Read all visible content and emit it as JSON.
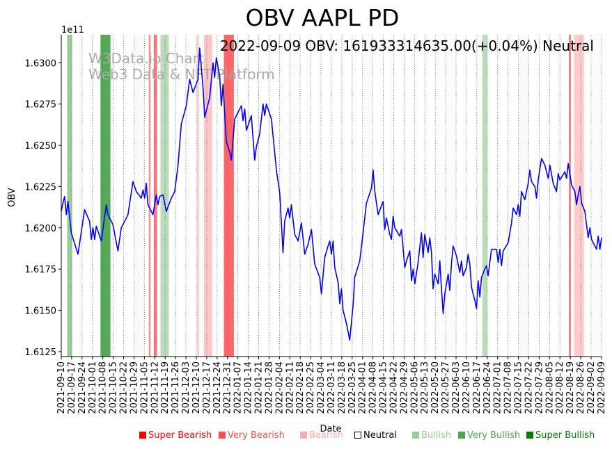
{
  "chart_data": {
    "type": "line",
    "title": "OBV AAPL PD",
    "annotation": "2022-09-09 OBV: 161933314635.00(+0.04%) Neutral",
    "watermark": [
      "W3Data.io Chart",
      "Web3 Data & NFT Platform"
    ],
    "xlabel": "Date",
    "ylabel": "OBV",
    "y_multiplier_label": "1e11",
    "ylim": [
      1.6122,
      1.6317
    ],
    "grid": "vertical dotted lines at each date tick",
    "yticks": [
      1.6125,
      1.615,
      1.6175,
      1.62,
      1.6225,
      1.625,
      1.6275,
      1.63
    ],
    "ytick_labels": [
      "1.6125",
      "1.6150",
      "1.6175",
      "1.6200",
      "1.6225",
      "1.6250",
      "1.6275",
      "1.6300"
    ],
    "xtick_labels": [
      "2021-09-10",
      "2021-09-17",
      "2021-09-24",
      "2021-10-01",
      "2021-10-08",
      "2021-10-15",
      "2021-10-22",
      "2021-10-29",
      "2021-11-05",
      "2021-11-12",
      "2021-11-19",
      "2021-11-26",
      "2021-12-03",
      "2021-12-10",
      "2021-12-17",
      "2021-12-24",
      "2021-12-31",
      "2022-01-07",
      "2022-01-14",
      "2022-01-21",
      "2022-01-28",
      "2022-02-04",
      "2022-02-11",
      "2022-02-18",
      "2022-02-25",
      "2022-03-04",
      "2022-03-11",
      "2022-03-18",
      "2022-03-25",
      "2022-04-01",
      "2022-04-08",
      "2022-04-15",
      "2022-04-22",
      "2022-04-29",
      "2022-05-06",
      "2022-05-13",
      "2022-05-20",
      "2022-05-27",
      "2022-06-03",
      "2022-06-10",
      "2022-06-17",
      "2022-06-24",
      "2022-07-01",
      "2022-07-08",
      "2022-07-15",
      "2022-07-22",
      "2022-07-29",
      "2022-08-05",
      "2022-08-12",
      "2022-08-19",
      "2022-08-26",
      "2022-09-02",
      "2022-09-09"
    ],
    "series": [
      {
        "name": "OBV",
        "color": "#0000ff",
        "points": [
          [
            0,
            1.621
          ],
          [
            1,
            1.6215
          ],
          [
            2,
            1.6219
          ],
          [
            3,
            1.6208
          ],
          [
            4,
            1.6216
          ],
          [
            6,
            1.6197
          ],
          [
            10,
            1.6184
          ],
          [
            14,
            1.6211
          ],
          [
            17,
            1.6204
          ],
          [
            18,
            1.6193
          ],
          [
            19,
            1.62
          ],
          [
            20,
            1.6193
          ],
          [
            21,
            1.6201
          ],
          [
            24,
            1.6192
          ],
          [
            27,
            1.6214
          ],
          [
            28,
            1.6208
          ],
          [
            31,
            1.6202
          ],
          [
            34,
            1.6186
          ],
          [
            36,
            1.62
          ],
          [
            40,
            1.6208
          ],
          [
            43,
            1.6228
          ],
          [
            45,
            1.6222
          ],
          [
            48,
            1.6218
          ],
          [
            49,
            1.6223
          ],
          [
            50,
            1.6218
          ],
          [
            51,
            1.6227
          ],
          [
            52,
            1.6214
          ],
          [
            55,
            1.6208
          ],
          [
            57,
            1.622
          ],
          [
            58,
            1.6214
          ],
          [
            59,
            1.6219
          ],
          [
            61,
            1.622
          ],
          [
            63,
            1.621
          ],
          [
            66,
            1.6218
          ],
          [
            68,
            1.6222
          ],
          [
            70,
            1.6238
          ],
          [
            72,
            1.6263
          ],
          [
            75,
            1.6274
          ],
          [
            77,
            1.629
          ],
          [
            79,
            1.6282
          ],
          [
            82,
            1.629
          ],
          [
            83,
            1.6309
          ],
          [
            85,
            1.6285
          ],
          [
            86,
            1.6267
          ],
          [
            89,
            1.6279
          ],
          [
            91,
            1.63
          ],
          [
            92,
            1.6291
          ],
          [
            93,
            1.6303
          ],
          [
            95,
            1.6292
          ],
          [
            96,
            1.6274
          ],
          [
            97,
            1.6287
          ],
          [
            99,
            1.6252
          ],
          [
            101,
            1.6246
          ],
          [
            102,
            1.6241
          ],
          [
            104,
            1.6266
          ],
          [
            106,
            1.627
          ],
          [
            108,
            1.6274
          ],
          [
            109,
            1.6265
          ],
          [
            110,
            1.6272
          ],
          [
            111,
            1.6259
          ],
          [
            114,
            1.6268
          ],
          [
            116,
            1.6241
          ],
          [
            117,
            1.6249
          ],
          [
            119,
            1.6257
          ],
          [
            121,
            1.6275
          ],
          [
            122,
            1.6268
          ],
          [
            123,
            1.6275
          ],
          [
            126,
            1.6266
          ],
          [
            129,
            1.6235
          ],
          [
            131,
            1.6221
          ],
          [
            133,
            1.6185
          ],
          [
            134,
            1.6204
          ],
          [
            136,
            1.6212
          ],
          [
            137,
            1.6206
          ],
          [
            138,
            1.6214
          ],
          [
            140,
            1.6196
          ],
          [
            142,
            1.6192
          ],
          [
            144,
            1.6203
          ],
          [
            146,
            1.6184
          ],
          [
            148,
            1.619
          ],
          [
            150,
            1.6199
          ],
          [
            152,
            1.6178
          ],
          [
            155,
            1.617
          ],
          [
            156,
            1.616
          ],
          [
            158,
            1.6182
          ],
          [
            160,
            1.6189
          ],
          [
            161,
            1.6192
          ],
          [
            162,
            1.6184
          ],
          [
            163,
            1.6192
          ],
          [
            164,
            1.6176
          ],
          [
            166,
            1.6167
          ],
          [
            167,
            1.6154
          ],
          [
            168,
            1.6163
          ],
          [
            169,
            1.615
          ],
          [
            171,
            1.6142
          ],
          [
            173,
            1.6132
          ],
          [
            175,
            1.6153
          ],
          [
            176,
            1.617
          ],
          [
            179,
            1.618
          ],
          [
            181,
            1.6197
          ],
          [
            183,
            1.6215
          ],
          [
            186,
            1.6224
          ],
          [
            187,
            1.6235
          ],
          [
            188,
            1.6222
          ],
          [
            190,
            1.6208
          ],
          [
            193,
            1.6216
          ],
          [
            194,
            1.6199
          ],
          [
            195,
            1.6206
          ],
          [
            197,
            1.6196
          ],
          [
            198,
            1.6193
          ],
          [
            199,
            1.6207
          ],
          [
            200,
            1.62
          ],
          [
            203,
            1.6195
          ],
          [
            204,
            1.6199
          ],
          [
            206,
            1.6176
          ],
          [
            207,
            1.618
          ],
          [
            209,
            1.6186
          ],
          [
            210,
            1.6168
          ],
          [
            211,
            1.6175
          ],
          [
            212,
            1.6166
          ],
          [
            214,
            1.6179
          ],
          [
            216,
            1.6197
          ],
          [
            217,
            1.6182
          ],
          [
            218,
            1.6196
          ],
          [
            220,
            1.6185
          ],
          [
            221,
            1.6194
          ],
          [
            222,
            1.6185
          ],
          [
            223,
            1.6163
          ],
          [
            224,
            1.6172
          ],
          [
            226,
            1.6166
          ],
          [
            227,
            1.618
          ],
          [
            228,
            1.6163
          ],
          [
            229,
            1.6148
          ],
          [
            230,
            1.616
          ],
          [
            232,
            1.6172
          ],
          [
            233,
            1.6162
          ],
          [
            234,
            1.6178
          ],
          [
            235,
            1.6189
          ],
          [
            237,
            1.6183
          ],
          [
            239,
            1.6173
          ],
          [
            240,
            1.618
          ],
          [
            241,
            1.6171
          ],
          [
            243,
            1.6176
          ],
          [
            244,
            1.6184
          ],
          [
            245,
            1.6178
          ],
          [
            246,
            1.6164
          ],
          [
            248,
            1.6156
          ],
          [
            249,
            1.6151
          ],
          [
            250,
            1.6168
          ],
          [
            251,
            1.6158
          ],
          [
            252,
            1.617
          ],
          [
            254,
            1.6175
          ],
          [
            255,
            1.6177
          ],
          [
            256,
            1.6171
          ],
          [
            258,
            1.6187
          ],
          [
            261,
            1.6187
          ],
          [
            262,
            1.6179
          ],
          [
            263,
            1.6187
          ],
          [
            264,
            1.6177
          ],
          [
            265,
            1.6186
          ],
          [
            268,
            1.6191
          ],
          [
            270,
            1.6203
          ],
          [
            271,
            1.6212
          ],
          [
            273,
            1.6208
          ],
          [
            274,
            1.6214
          ],
          [
            275,
            1.6207
          ],
          [
            276,
            1.6222
          ],
          [
            278,
            1.6217
          ],
          [
            280,
            1.6227
          ],
          [
            281,
            1.6235
          ],
          [
            282,
            1.6228
          ],
          [
            284,
            1.6225
          ],
          [
            285,
            1.6218
          ],
          [
            286,
            1.6229
          ],
          [
            288,
            1.6242
          ],
          [
            290,
            1.6238
          ],
          [
            291,
            1.6234
          ],
          [
            292,
            1.623
          ],
          [
            293,
            1.6238
          ],
          [
            295,
            1.6227
          ],
          [
            297,
            1.6222
          ],
          [
            298,
            1.6233
          ],
          [
            299,
            1.6229
          ],
          [
            302,
            1.6234
          ],
          [
            303,
            1.623
          ],
          [
            304,
            1.6239
          ],
          [
            306,
            1.6226
          ],
          [
            308,
            1.6222
          ],
          [
            309,
            1.6214
          ],
          [
            310,
            1.622
          ],
          [
            311,
            1.6225
          ],
          [
            312,
            1.6215
          ],
          [
            314,
            1.621
          ],
          [
            316,
            1.6194
          ],
          [
            317,
            1.62
          ],
          [
            318,
            1.6193
          ],
          [
            321,
            1.6187
          ],
          [
            322,
            1.6195
          ],
          [
            323,
            1.6187
          ],
          [
            324,
            1.6194
          ]
        ]
      }
    ],
    "x_index_range": [
      0,
      324
    ],
    "x_tick_step": 6.23,
    "signal_bands": [
      {
        "start": 3.5,
        "end": 6.5,
        "level": "Bullish",
        "color": "#99cc99"
      },
      {
        "start": 23.5,
        "end": 29.5,
        "level": "Very Bullish",
        "color": "#55aa55"
      },
      {
        "start": 52.5,
        "end": 53.5,
        "level": "Very Bearish",
        "color": "#ff8888"
      },
      {
        "start": 55.5,
        "end": 57.5,
        "level": "Very Bearish",
        "color": "#ff7777"
      },
      {
        "start": 59.5,
        "end": 64.5,
        "level": "Bullish",
        "color": "#b9dcb9"
      },
      {
        "start": 81.5,
        "end": 82.5,
        "level": "Bearish",
        "color": "#ffc0c0"
      },
      {
        "start": 85.5,
        "end": 90.5,
        "level": "Bearish",
        "color": "#ffc6c6"
      },
      {
        "start": 97.5,
        "end": 103.5,
        "level": "Very Bearish",
        "color": "#ff6666"
      },
      {
        "start": 252.5,
        "end": 255.5,
        "level": "Bullish",
        "color": "#b9dcb9"
      },
      {
        "start": 304.5,
        "end": 305.5,
        "level": "Very Bearish",
        "color": "#ff6666"
      },
      {
        "start": 307.5,
        "end": 313.5,
        "level": "Bearish",
        "color": "#ffcccc"
      }
    ],
    "legend_position": "bottom",
    "legend": [
      {
        "label": "Super Bearish",
        "color": "#ff0000",
        "swatch": "#ff0000"
      },
      {
        "label": "Very Bearish",
        "color": "#ff4d4d",
        "swatch": "#ff4d4d"
      },
      {
        "label": "Bearish",
        "color": "#ffaaaa",
        "swatch": "#ffaaaa"
      },
      {
        "label": "Neutral",
        "color": "#000000",
        "swatch": "#ffffff"
      },
      {
        "label": "Bullish",
        "color": "#99cc99",
        "swatch": "#99cc99"
      },
      {
        "label": "Very Bullish",
        "color": "#4da64d",
        "swatch": "#4da64d"
      },
      {
        "label": "Super Bullish",
        "color": "#008000",
        "swatch": "#008000"
      }
    ]
  }
}
